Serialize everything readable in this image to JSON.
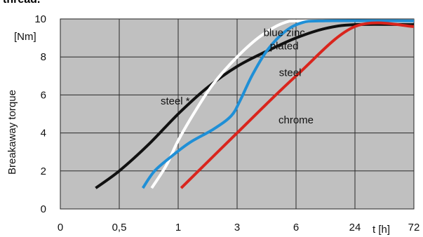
{
  "page": {
    "title": "thread."
  },
  "chart_data": {
    "type": "line",
    "ylabel": "Breakaway  torque",
    "yunit": "[Nm]",
    "xlabel": "t [h]",
    "x_categories": [
      "0",
      "0,5",
      "1",
      "3",
      "6",
      "24",
      "72"
    ],
    "y_ticks": [
      "0",
      "2",
      "4",
      "6",
      "8",
      "10"
    ],
    "ylim": [
      0,
      10
    ],
    "grid": true,
    "background_color": "#c0c0c0",
    "x_tick_positions": [
      0,
      1,
      2,
      3,
      4,
      5,
      6
    ],
    "series": [
      {
        "name": "steel *",
        "color": "#111111",
        "points": [
          [
            0.6,
            1.1
          ],
          [
            1.0,
            2.0
          ],
          [
            1.5,
            3.4
          ],
          [
            2.0,
            5.0
          ],
          [
            2.5,
            6.4
          ],
          [
            3.0,
            7.5
          ],
          [
            3.5,
            8.3
          ],
          [
            4.0,
            9.0
          ],
          [
            4.5,
            9.5
          ],
          [
            5.0,
            9.7
          ],
          [
            6.0,
            9.7
          ]
        ]
      },
      {
        "name": "blue zinc plated",
        "color": "#ffffff",
        "points": [
          [
            1.55,
            1.1
          ],
          [
            1.8,
            2.3
          ],
          [
            2.0,
            3.6
          ],
          [
            2.3,
            5.2
          ],
          [
            2.6,
            6.6
          ],
          [
            3.0,
            8.0
          ],
          [
            3.4,
            9.1
          ],
          [
            3.8,
            9.8
          ],
          [
            4.2,
            9.9
          ],
          [
            6.0,
            9.9
          ]
        ]
      },
      {
        "name": "steel",
        "color": "#1f8fd6",
        "points": [
          [
            1.4,
            1.1
          ],
          [
            1.6,
            2.0
          ],
          [
            1.9,
            2.8
          ],
          [
            2.2,
            3.5
          ],
          [
            2.6,
            4.2
          ],
          [
            2.9,
            4.9
          ],
          [
            3.05,
            5.7
          ],
          [
            3.25,
            7.0
          ],
          [
            3.5,
            8.3
          ],
          [
            3.8,
            9.3
          ],
          [
            4.1,
            9.8
          ],
          [
            4.5,
            9.9
          ],
          [
            6.0,
            9.9
          ]
        ]
      },
      {
        "name": "chrome",
        "color": "#d9251d",
        "points": [
          [
            2.05,
            1.1
          ],
          [
            3.0,
            4.0
          ],
          [
            4.0,
            7.0
          ],
          [
            5.0,
            9.6
          ],
          [
            6.0,
            9.6
          ]
        ]
      }
    ],
    "annotations": [
      {
        "text": "blue zinc",
        "series": "blue zinc plated",
        "x": 3.8,
        "y": 9.1
      },
      {
        "text": "plated",
        "series": "blue zinc plated",
        "x": 3.8,
        "y": 8.4
      },
      {
        "text": "steel",
        "series": "steel",
        "x": 3.9,
        "y": 7.0
      },
      {
        "text": "steel *",
        "series": "steel *",
        "x": 1.95,
        "y": 5.5
      },
      {
        "text": "chrome",
        "series": "chrome",
        "x": 4.0,
        "y": 4.5
      }
    ]
  }
}
